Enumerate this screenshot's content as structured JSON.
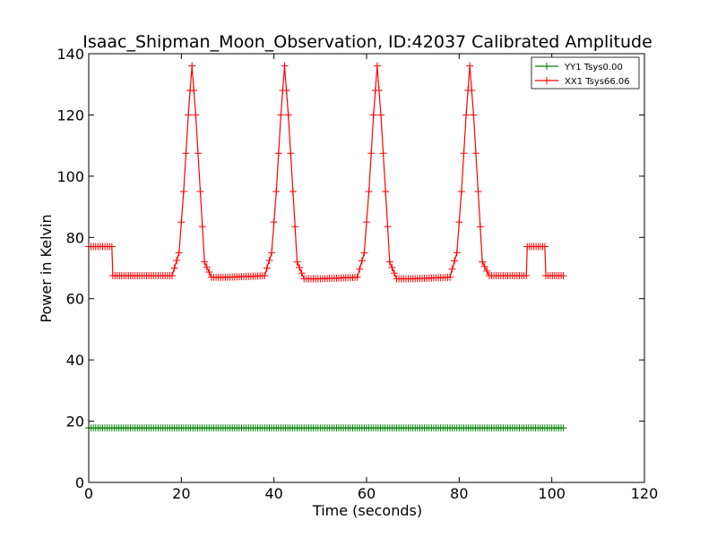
{
  "chart_data": {
    "type": "line",
    "title": "Isaac_Shipman_Moon_Observation, ID:42037 Calibrated Amplitude",
    "xlabel": "Time (seconds)",
    "ylabel": "Power in Kelvin",
    "xlim": [
      0,
      120
    ],
    "ylim": [
      0,
      140
    ],
    "xticks": [
      "0",
      "20",
      "40",
      "60",
      "80",
      "100",
      "120"
    ],
    "yticks": [
      "0",
      "20",
      "40",
      "60",
      "80",
      "100",
      "120",
      "140"
    ],
    "grid": false,
    "legend_position": "top-right",
    "series": [
      {
        "name": "YY1 Tsys0.00",
        "color": "#008000",
        "marker": "+",
        "x": [
          0,
          10,
          20,
          30,
          40,
          50,
          60,
          70,
          80,
          90,
          95,
          100,
          102.5
        ],
        "y": [
          17.8,
          17.8,
          17.8,
          17.8,
          17.8,
          17.8,
          17.8,
          17.8,
          17.8,
          17.8,
          17.8,
          17.8,
          17.8
        ]
      },
      {
        "name": "XX1 Tsys66.06",
        "color": "#ff0000",
        "marker": "+",
        "x": [
          0,
          5,
          5.2,
          10,
          18,
          19.5,
          20.5,
          21.5,
          22.3,
          23.1,
          24.1,
          25,
          26.5,
          30,
          38,
          39.5,
          40.5,
          41.5,
          42.3,
          43.1,
          44.1,
          45,
          46.5,
          50,
          58,
          59.5,
          60.5,
          61.5,
          62.3,
          63.1,
          64.1,
          65,
          66.5,
          70,
          78,
          79.5,
          80.5,
          81.5,
          82.3,
          83.1,
          84.1,
          85,
          86.5,
          90,
          94.5,
          94.7,
          98.5,
          98.7,
          102.5
        ],
        "y": [
          77,
          77,
          67.5,
          67.5,
          67.5,
          75,
          95,
          120,
          136,
          120,
          95,
          72,
          67,
          67,
          67.5,
          75,
          95,
          120,
          136,
          120,
          95,
          72,
          66.5,
          66.5,
          67,
          75,
          95,
          120,
          136,
          120,
          95,
          72,
          66.5,
          66.5,
          67,
          75,
          95,
          120,
          136,
          120,
          95,
          72,
          67.5,
          67.5,
          67.5,
          77,
          77,
          67.5,
          67.5
        ]
      }
    ]
  }
}
